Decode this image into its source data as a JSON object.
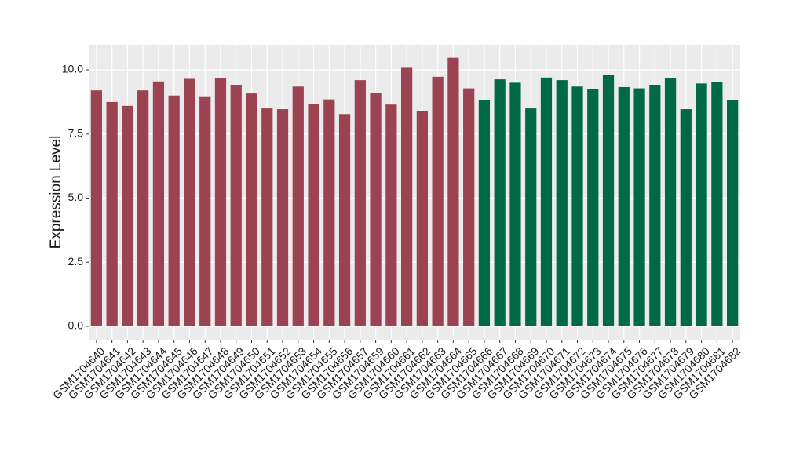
{
  "chart_data": {
    "type": "bar",
    "y_label": "Expression Level",
    "categories": [
      "GSM1704640",
      "GSM1704641",
      "GSM1704642",
      "GSM1704643",
      "GSM1704644",
      "GSM1704645",
      "GSM1704646",
      "GSM1704647",
      "GSM1704648",
      "GSM1704649",
      "GSM1704650",
      "GSM1704651",
      "GSM1704652",
      "GSM1704653",
      "GSM1704654",
      "GSM1704655",
      "GSM1704656",
      "GSM1704657",
      "GSM1704659",
      "GSM1704660",
      "GSM1704661",
      "GSM1704662",
      "GSM1704663",
      "GSM1704664",
      "GSM1704665",
      "GSM1704666",
      "GSM1704667",
      "GSM1704668",
      "GSM1704669",
      "GSM1704670",
      "GSM1704671",
      "GSM1704672",
      "GSM1704673",
      "GSM1704674",
      "GSM1704675",
      "GSM1704676",
      "GSM1704677",
      "GSM1704678",
      "GSM1704679",
      "GSM1704680",
      "GSM1704681",
      "GSM1704682"
    ],
    "values": [
      9.2,
      8.75,
      8.6,
      9.2,
      9.55,
      9.0,
      9.65,
      8.97,
      9.68,
      9.42,
      9.08,
      8.5,
      8.47,
      9.35,
      8.68,
      8.85,
      8.28,
      9.6,
      9.1,
      8.65,
      10.08,
      8.4,
      9.73,
      10.47,
      9.28,
      8.82,
      9.63,
      9.5,
      8.5,
      9.7,
      9.6,
      9.35,
      9.25,
      9.8,
      9.33,
      9.28,
      9.42,
      9.67,
      8.47,
      9.47,
      9.53,
      8.82
    ],
    "colors": [
      "#9b4350",
      "#9b4350",
      "#9b4350",
      "#9b4350",
      "#9b4350",
      "#9b4350",
      "#9b4350",
      "#9b4350",
      "#9b4350",
      "#9b4350",
      "#9b4350",
      "#9b4350",
      "#9b4350",
      "#9b4350",
      "#9b4350",
      "#9b4350",
      "#9b4350",
      "#9b4350",
      "#9b4350",
      "#9b4350",
      "#9b4350",
      "#9b4350",
      "#9b4350",
      "#9b4350",
      "#9b4350",
      "#006a45",
      "#006a45",
      "#006a45",
      "#006a45",
      "#006a45",
      "#006a45",
      "#006a45",
      "#006a45",
      "#006a45",
      "#006a45",
      "#006a45",
      "#006a45",
      "#006a45",
      "#006a45",
      "#006a45",
      "#006a45",
      "#006a45"
    ],
    "ylim": [
      -0.52,
      10.98
    ],
    "yticks": [
      {
        "value": 0,
        "label": "0.0"
      },
      2.5,
      {
        "value": 5,
        "label": "5.0"
      },
      7.5,
      {
        "value": 10,
        "label": "10.0"
      }
    ],
    "grid": true
  }
}
